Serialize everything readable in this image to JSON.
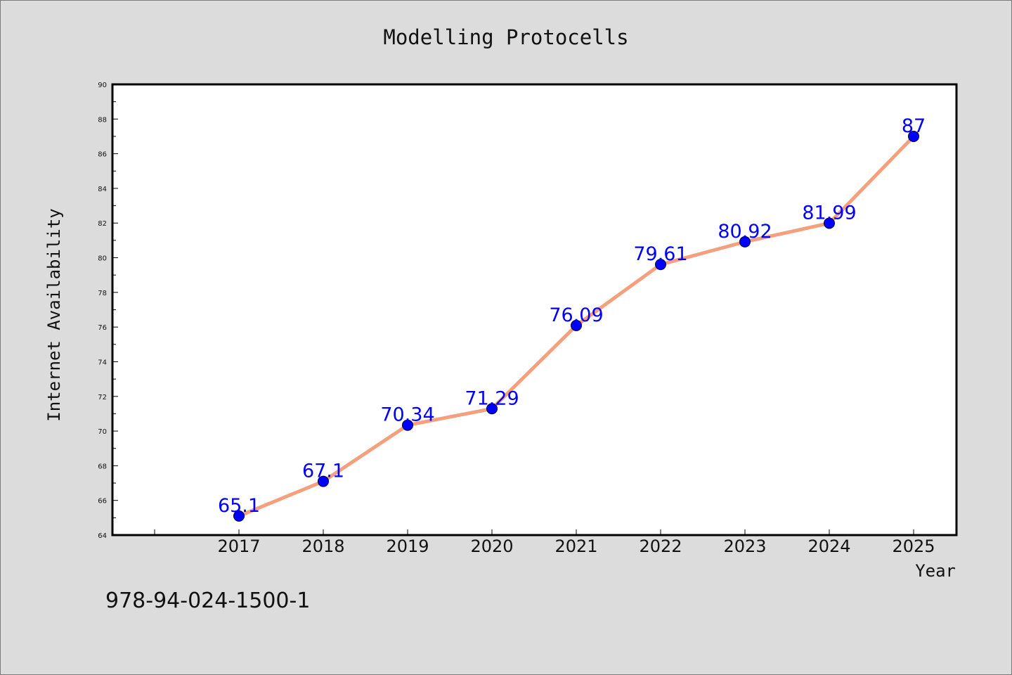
{
  "chart_data": {
    "type": "line",
    "title": "Modelling Protocells",
    "xlabel": "Year",
    "ylabel": "Internet Availability",
    "categories": [
      "2017",
      "2018",
      "2019",
      "2020",
      "2021",
      "2022",
      "2023",
      "2024",
      "2025"
    ],
    "series": [
      {
        "values": [
          65.1,
          67.1,
          70.34,
          71.29,
          76.09,
          79.61,
          80.92,
          81.99,
          87
        ],
        "labels": [
          "65.1",
          "67.1",
          "70.34",
          "71.29",
          "76.09",
          "79.61",
          "80.92",
          "81.99",
          "87"
        ]
      }
    ],
    "ylim": [
      64,
      90
    ],
    "y_ticks": [
      "64",
      "66",
      "68",
      "70",
      "72",
      "74",
      "76",
      "78",
      "80",
      "82",
      "84",
      "86",
      "88",
      "90"
    ],
    "grid": false,
    "legend": "none",
    "colors": {
      "line": "#f4a07e",
      "marker": "#0000ff",
      "data_label": "#0000ff",
      "background": "#dcdcdc",
      "plot_area": "#ffffff"
    }
  },
  "footnote": "978-94-024-1500-1"
}
